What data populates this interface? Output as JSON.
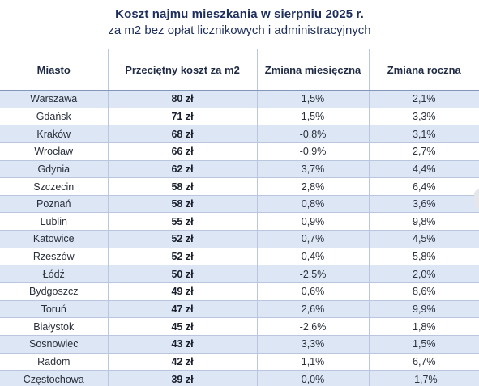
{
  "header": {
    "title": "Koszt najmu mieszkania w sierpniu 2025 r.",
    "subtitle": "za m2 bez opłat licznikowych i administracyjnych"
  },
  "table": {
    "columns": [
      "Miasto",
      "Przeciętny koszt za m2",
      "Zmiana miesięczna",
      "Zmiana roczna"
    ],
    "rows": [
      {
        "city": "Warszawa",
        "cost": "80 zł",
        "monthly": "1,5%",
        "yearly": "2,1%"
      },
      {
        "city": "Gdańsk",
        "cost": "71 zł",
        "monthly": "1,5%",
        "yearly": "3,3%"
      },
      {
        "city": "Kraków",
        "cost": "68 zł",
        "monthly": "-0,8%",
        "yearly": "3,1%"
      },
      {
        "city": "Wrocław",
        "cost": "66 zł",
        "monthly": "-0,9%",
        "yearly": "2,7%"
      },
      {
        "city": "Gdynia",
        "cost": "62 zł",
        "monthly": "3,7%",
        "yearly": "4,4%"
      },
      {
        "city": "Szczecin",
        "cost": "58 zł",
        "monthly": "2,8%",
        "yearly": "6,4%"
      },
      {
        "city": "Poznań",
        "cost": "58 zł",
        "monthly": "0,8%",
        "yearly": "3,6%"
      },
      {
        "city": "Lublin",
        "cost": "55 zł",
        "monthly": "0,9%",
        "yearly": "9,8%"
      },
      {
        "city": "Katowice",
        "cost": "52 zł",
        "monthly": "0,7%",
        "yearly": "4,5%"
      },
      {
        "city": "Rzeszów",
        "cost": "52 zł",
        "monthly": "0,4%",
        "yearly": "5,8%"
      },
      {
        "city": "Łódź",
        "cost": "50 zł",
        "monthly": "-2,5%",
        "yearly": "2,0%"
      },
      {
        "city": "Bydgoszcz",
        "cost": "49 zł",
        "monthly": "0,6%",
        "yearly": "8,6%"
      },
      {
        "city": "Toruń",
        "cost": "47 zł",
        "monthly": "2,6%",
        "yearly": "9,9%"
      },
      {
        "city": "Białystok",
        "cost": "45 zł",
        "monthly": "-2,6%",
        "yearly": "1,8%"
      },
      {
        "city": "Sosnowiec",
        "cost": "43 zł",
        "monthly": "3,3%",
        "yearly": "1,5%"
      },
      {
        "city": "Radom",
        "cost": "42 zł",
        "monthly": "1,1%",
        "yearly": "6,7%"
      },
      {
        "city": "Częstochowa",
        "cost": "39 zł",
        "monthly": "0,0%",
        "yearly": "-1,7%"
      }
    ]
  }
}
